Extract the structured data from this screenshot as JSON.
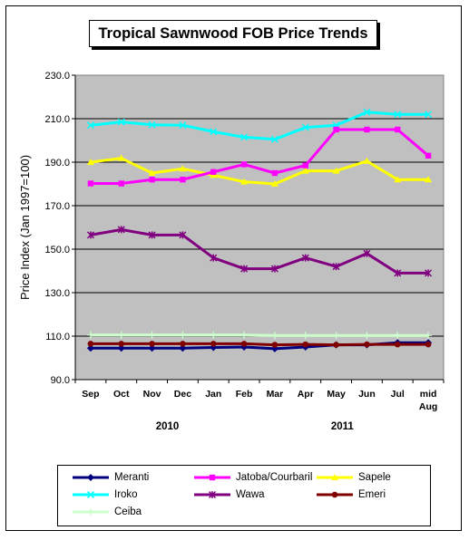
{
  "chart_data": {
    "type": "line",
    "title": "Tropical Sawnwood FOB Price Trends",
    "ylabel": "Price Index  (Jan 1997=100)",
    "xlabel": "",
    "ylim": [
      90,
      230
    ],
    "yticks": [
      "90.0",
      "110.0",
      "130.0",
      "150.0",
      "170.0",
      "190.0",
      "210.0",
      "230.0"
    ],
    "grid": "horizontal",
    "categories": [
      "Sep",
      "Oct",
      "Nov",
      "Dec",
      "Jan",
      "Feb",
      "Mar",
      "Apr",
      "May",
      "Jun",
      "Jul",
      "mid Aug"
    ],
    "year_labels": [
      {
        "label": "2010",
        "category_index": 2.5
      },
      {
        "label": "2011",
        "category_index": 8.2
      }
    ],
    "series": [
      {
        "name": "Meranti",
        "color": "#000080",
        "marker": "diamond",
        "values": [
          104.5,
          104.5,
          104.5,
          104.5,
          104.8,
          105,
          104.2,
          105,
          106,
          106,
          107,
          107
        ]
      },
      {
        "name": "Jatoba/Courbaril",
        "color": "#ff00ff",
        "marker": "square",
        "values": [
          180.2,
          180.2,
          182,
          182,
          185.5,
          189,
          185,
          188.5,
          205,
          205,
          205,
          193
        ]
      },
      {
        "name": "Sapele",
        "color": "#ffff00",
        "marker": "triangle",
        "values": [
          190,
          191.8,
          185,
          187,
          184,
          181,
          180,
          186,
          186,
          190.5,
          182,
          182
        ]
      },
      {
        "name": "Iroko",
        "color": "#00ffff",
        "marker": "x",
        "values": [
          207,
          208.5,
          207.2,
          207,
          204,
          201.5,
          200.5,
          206,
          207,
          213,
          212,
          212
        ]
      },
      {
        "name": "Wawa",
        "color": "#800080",
        "marker": "star",
        "values": [
          156.5,
          159,
          156.5,
          156.5,
          146,
          141,
          141,
          146,
          142,
          148,
          139,
          139
        ]
      },
      {
        "name": "Emeri",
        "color": "#800000",
        "marker": "circle",
        "values": [
          106.5,
          106.5,
          106.5,
          106.5,
          106.5,
          106.5,
          106,
          106.2,
          106,
          106.2,
          106.2,
          106.2
        ]
      },
      {
        "name": "Ceiba",
        "color": "#ccffcc",
        "marker": "plus",
        "values": [
          110.5,
          110.5,
          110.5,
          110.5,
          110.5,
          110.5,
          110.3,
          110.3,
          110.3,
          110.3,
          110.3,
          110.3
        ]
      }
    ],
    "legend_position": "bottom"
  }
}
